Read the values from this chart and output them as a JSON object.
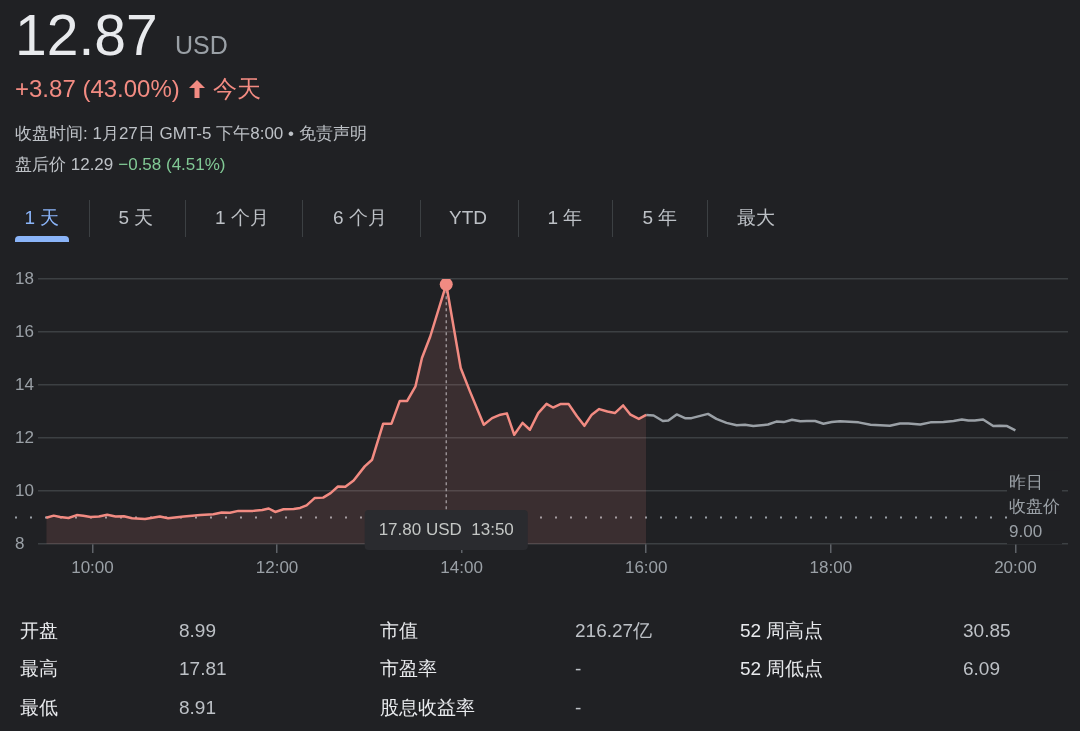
{
  "chart_data": {
    "type": "line",
    "title": "12.87",
    "annotations": [
      "USD",
      "+3.87 (43.00%)",
      "今天",
      "收盘时间: 1月27日 GMT-5 下午8:00 • 免责声明",
      "盘后价 12.29",
      "−0.58 (4.51%)",
      "1 天",
      "5 天",
      "1 个月",
      "6 个月",
      "YTD",
      "1 年",
      "5 年",
      "最大",
      "开盘",
      "8.99",
      "市值",
      "216.27亿",
      "52 周高点",
      "30.85",
      "最高",
      "17.81",
      "市盈率",
      "-",
      "52 周低点",
      "6.09",
      "最低",
      "8.91",
      "股息收益率",
      "-",
      {
        "text": "17.80 USD  13:50",
        "x": 13.8333,
        "y": 17.8
      }
    ],
    "series": [
      {
        "type": "area",
        "color": "#f28b82",
        "x": [
          9.5,
          9.58,
          9.65,
          9.74,
          9.83,
          9.9,
          9.98,
          10.07,
          10.16,
          10.25,
          10.34,
          10.43,
          10.57,
          10.73,
          10.82,
          10.99,
          11.17,
          11.31,
          11.4,
          11.49,
          11.58,
          11.74,
          11.84,
          11.91,
          11.98,
          12.07,
          12.18,
          12.25,
          12.32,
          12.41,
          12.5,
          12.58,
          12.66,
          12.74,
          12.83,
          12.95,
          13.03,
          13.15,
          13.24,
          13.33,
          13.41,
          13.5,
          13.57,
          13.66,
          13.8333,
          13.99,
          14.09,
          14.24,
          14.33,
          14.42,
          14.49,
          14.57,
          14.66,
          14.74,
          14.83,
          14.92,
          14.99,
          15.07,
          15.16,
          15.25,
          15.33,
          15.41,
          15.49,
          15.58,
          15.66,
          15.75,
          15.83,
          15.92,
          16.0
        ],
        "values": [
          8.99,
          9.07,
          9.02,
          8.98,
          9.09,
          9.07,
          9.02,
          9.04,
          9.1,
          9.04,
          9.05,
          8.97,
          8.94,
          9.04,
          8.97,
          9.04,
          9.09,
          9.12,
          9.19,
          9.18,
          9.25,
          9.25,
          9.28,
          9.34,
          9.21,
          9.31,
          9.32,
          9.36,
          9.46,
          9.74,
          9.75,
          9.92,
          10.17,
          10.16,
          10.4,
          10.93,
          11.18,
          12.54,
          12.54,
          13.4,
          13.4,
          13.95,
          15.02,
          15.83,
          17.8,
          14.64,
          13.76,
          12.5,
          12.75,
          12.88,
          12.93,
          12.12,
          12.57,
          12.31,
          12.94,
          13.29,
          13.15,
          13.28,
          13.28,
          12.82,
          12.46,
          12.88,
          13.09,
          13.0,
          12.94,
          13.23,
          12.88,
          12.72,
          12.87
        ]
      },
      {
        "color": "#9aa0a6",
        "x": [
          16.0,
          16.08,
          16.18,
          16.24,
          16.33,
          16.42,
          16.49,
          16.67,
          16.76,
          16.87,
          16.98,
          17.07,
          17.16,
          17.32,
          17.41,
          17.49,
          17.58,
          17.67,
          17.74,
          17.83,
          17.92,
          18.01,
          18.1,
          18.3,
          18.43,
          18.64,
          18.75,
          18.84,
          18.97,
          19.08,
          19.22,
          19.33,
          19.42,
          19.49,
          19.56,
          19.65,
          19.76,
          19.83,
          19.91,
          20.0
        ],
        "values": [
          12.87,
          12.85,
          12.64,
          12.66,
          12.89,
          12.75,
          12.75,
          12.91,
          12.72,
          12.57,
          12.48,
          12.5,
          12.45,
          12.51,
          12.62,
          12.6,
          12.69,
          12.63,
          12.64,
          12.64,
          12.54,
          12.6,
          12.63,
          12.59,
          12.5,
          12.46,
          12.55,
          12.55,
          12.51,
          12.59,
          12.6,
          12.64,
          12.7,
          12.66,
          12.66,
          12.7,
          12.45,
          12.46,
          12.45,
          12.29
        ]
      },
      {
        "type": "scatter",
        "color": "#f28b82",
        "marker": "circle",
        "x": [
          13.8333
        ],
        "values": [
          17.8
        ]
      }
    ],
    "xlim": [
      9.41,
      20.57
    ],
    "xticks": [
      {
        "value": 10,
        "label": "10:00"
      },
      {
        "value": 12,
        "label": "12:00"
      },
      {
        "value": 14,
        "label": "14:00"
      },
      {
        "value": 16,
        "label": "16:00"
      },
      {
        "value": 18,
        "label": "18:00"
      },
      {
        "value": 20,
        "label": "20:00"
      }
    ],
    "ylim": [
      8,
      18
    ],
    "yticks": [
      8,
      10,
      12,
      14,
      16,
      18
    ],
    "grid": "y",
    "legend": false,
    "ref_lines": [
      {
        "axis": "y",
        "value": 9.0,
        "label": "昨日收盘价\n9.00",
        "color": "#9aa0a6",
        "line_style": "dotted"
      }
    ]
  }
}
